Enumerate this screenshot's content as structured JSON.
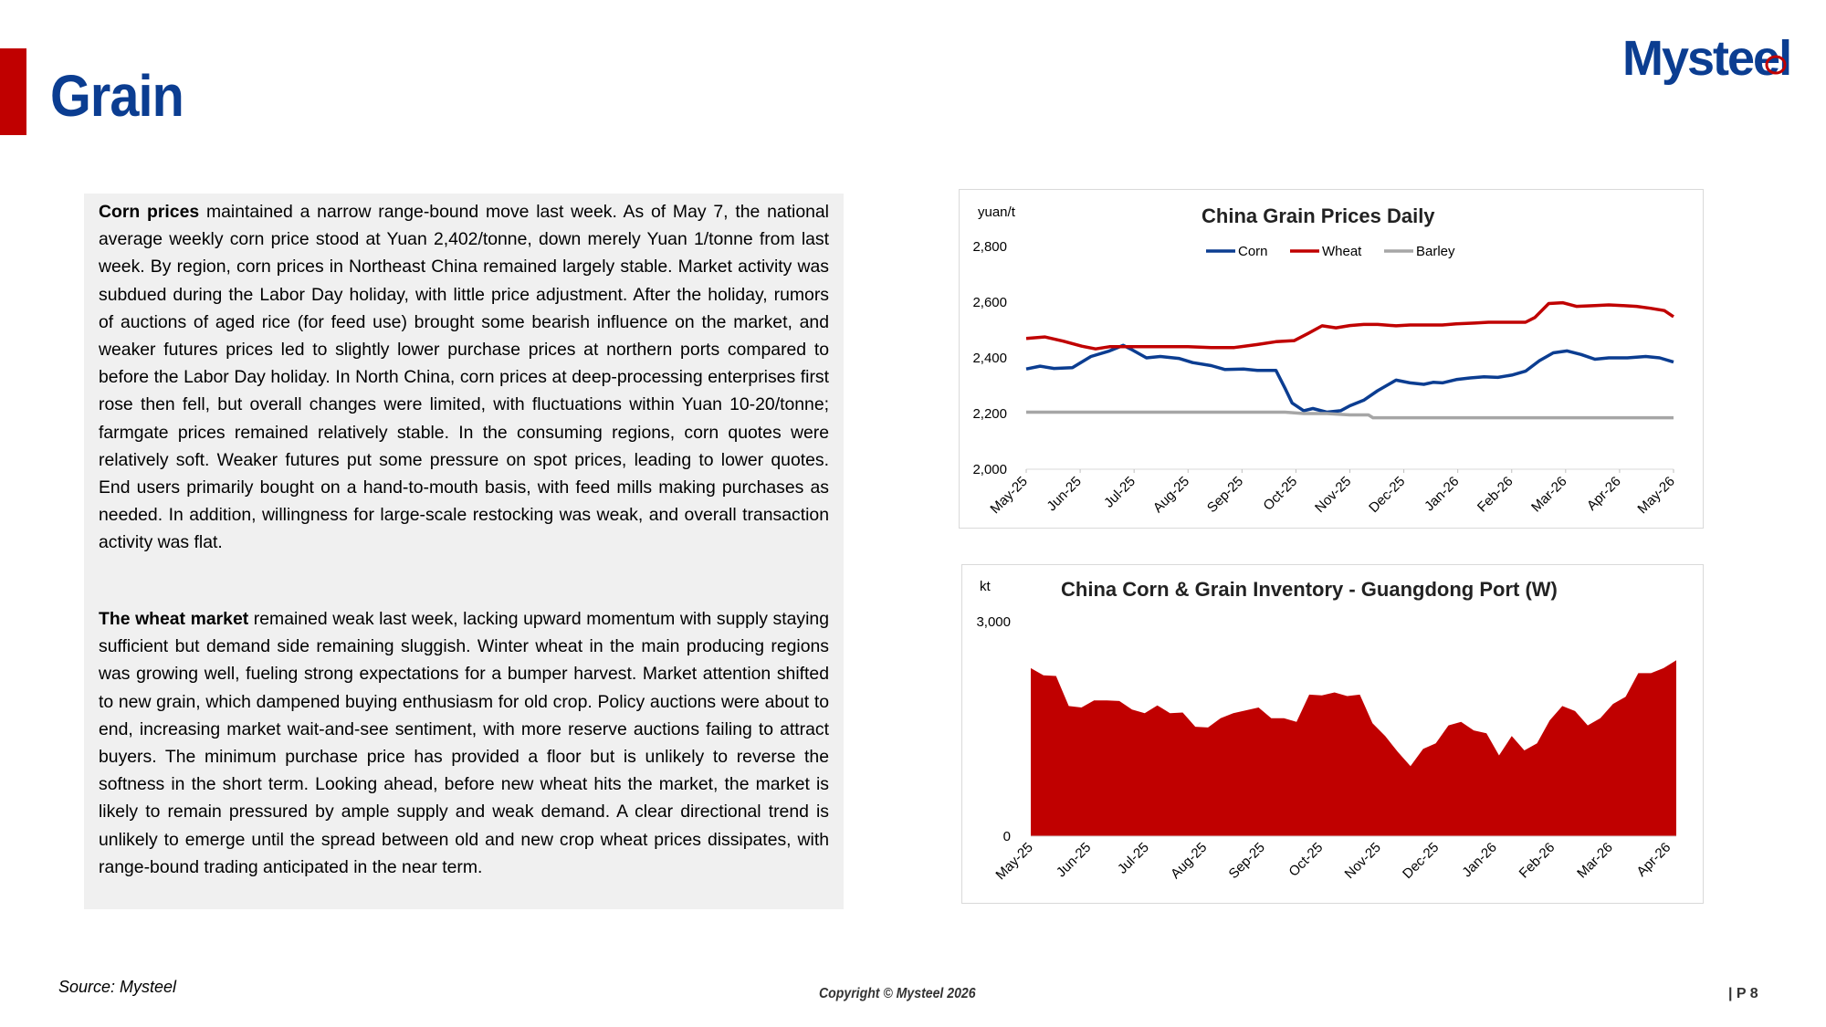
{
  "header": {
    "title": "Grain",
    "logo_text": "Mysteel"
  },
  "commentary": {
    "corn_lead": "Corn prices",
    "corn_body": " maintained a narrow range-bound move last week. As of May 7, the national average weekly corn price stood at Yuan 2,402/tonne, down merely Yuan 1/tonne from last week. By region, corn prices in Northeast China remained largely stable. Market activity was subdued during the Labor Day holiday, with little price adjustment. After the holiday, rumors of auctions of aged rice (for feed use) brought some bearish influence on the market, and weaker futures prices led to slightly lower purchase prices at northern ports compared to before the Labor Day holiday. In North China, corn prices at deep-processing enterprises first rose then fell, but overall changes were limited, with fluctuations within Yuan 10-20/tonne; farmgate prices remained relatively stable. In the consuming regions, corn quotes were relatively soft. Weaker futures put some pressure on spot prices, leading to lower quotes. End users primarily bought on a hand-to-mouth basis, with feed mills making purchases as needed. In addition, willingness for large-scale restocking was weak, and overall transaction activity was flat.",
    "wheat_lead": "The wheat market",
    "wheat_body": " remained weak last week, lacking upward momentum with supply staying sufficient but demand side remaining sluggish. Winter wheat in the main producing regions was growing well, fueling strong expectations for a bumper harvest. Market attention shifted to new grain, which dampened buying enthusiasm for old crop. Policy auctions were about to end, increasing market wait-and-see sentiment, with more reserve auctions failing to attract buyers. The minimum purchase price has provided a floor but is unlikely to reverse the softness in the short term. Looking ahead, before new wheat hits the market, the market is likely to remain pressured by ample supply and weak demand. A clear directional trend is unlikely to emerge until the spread between old and new crop wheat prices dissipates, with range-bound trading anticipated in the near term."
  },
  "chart_data": [
    {
      "type": "line",
      "title": "China Grain Prices Daily",
      "ylabel": "yuan/t",
      "ylim": [
        2000,
        2800
      ],
      "yticks": [
        2000,
        2200,
        2400,
        2600,
        2800
      ],
      "ytick_labels": [
        "2,000",
        "2,200",
        "2,400",
        "2,600",
        "2,800"
      ],
      "xticks": [
        "May-25",
        "Jun-25",
        "Jul-25",
        "Aug-25",
        "Sep-25",
        "Oct-25",
        "Nov-25",
        "Dec-25",
        "Jan-26",
        "Feb-26",
        "Mar-26",
        "Apr-26",
        "May-26"
      ],
      "legend": "top-center",
      "grid": false,
      "x_unit": "months since May-25",
      "series": [
        {
          "name": "Corn",
          "color": "#0b3d91",
          "points": [
            [
              0,
              2360
            ],
            [
              0.3,
              2370
            ],
            [
              0.6,
              2362
            ],
            [
              1.0,
              2365
            ],
            [
              1.4,
              2405
            ],
            [
              1.8,
              2425
            ],
            [
              2.1,
              2445
            ],
            [
              2.3,
              2428
            ],
            [
              2.6,
              2400
            ],
            [
              2.9,
              2405
            ],
            [
              3.3,
              2398
            ],
            [
              3.6,
              2383
            ],
            [
              4.0,
              2372
            ],
            [
              4.3,
              2358
            ],
            [
              4.7,
              2360
            ],
            [
              5.0,
              2355
            ],
            [
              5.4,
              2355
            ],
            [
              5.6,
              2290
            ],
            [
              5.75,
              2238
            ],
            [
              6.0,
              2210
            ],
            [
              6.2,
              2218
            ],
            [
              6.5,
              2205
            ],
            [
              6.8,
              2210
            ],
            [
              7.0,
              2228
            ],
            [
              7.3,
              2248
            ],
            [
              7.6,
              2282
            ],
            [
              8.0,
              2320
            ],
            [
              8.3,
              2310
            ],
            [
              8.6,
              2305
            ],
            [
              8.8,
              2312
            ],
            [
              9.0,
              2310
            ],
            [
              9.3,
              2322
            ],
            [
              9.6,
              2328
            ],
            [
              9.9,
              2332
            ],
            [
              10.2,
              2330
            ],
            [
              10.5,
              2338
            ],
            [
              10.8,
              2352
            ],
            [
              11.1,
              2390
            ],
            [
              11.4,
              2418
            ],
            [
              11.7,
              2425
            ],
            [
              12.0,
              2412
            ],
            [
              12.3,
              2395
            ],
            [
              12.6,
              2400
            ],
            [
              13.0,
              2400
            ],
            [
              13.4,
              2405
            ],
            [
              13.7,
              2400
            ],
            [
              14.0,
              2385
            ]
          ]
        },
        {
          "name": "Wheat",
          "color": "#c00000",
          "points": [
            [
              0,
              2470
            ],
            [
              0.4,
              2475
            ],
            [
              0.8,
              2460
            ],
            [
              1.2,
              2442
            ],
            [
              1.5,
              2432
            ],
            [
              1.8,
              2440
            ],
            [
              2.1,
              2440
            ],
            [
              2.4,
              2440
            ],
            [
              2.7,
              2440
            ],
            [
              3.0,
              2440
            ],
            [
              3.5,
              2440
            ],
            [
              4.0,
              2437
            ],
            [
              4.5,
              2437
            ],
            [
              5.0,
              2448
            ],
            [
              5.4,
              2458
            ],
            [
              5.8,
              2462
            ],
            [
              6.1,
              2488
            ],
            [
              6.4,
              2515
            ],
            [
              6.7,
              2508
            ],
            [
              7.0,
              2516
            ],
            [
              7.3,
              2520
            ],
            [
              7.6,
              2520
            ],
            [
              8.0,
              2515
            ],
            [
              8.3,
              2518
            ],
            [
              8.7,
              2518
            ],
            [
              9.0,
              2518
            ],
            [
              9.3,
              2522
            ],
            [
              9.7,
              2525
            ],
            [
              10.0,
              2528
            ],
            [
              10.5,
              2528
            ],
            [
              10.8,
              2528
            ],
            [
              11.0,
              2545
            ],
            [
              11.3,
              2595
            ],
            [
              11.6,
              2598
            ],
            [
              11.9,
              2585
            ],
            [
              12.3,
              2588
            ],
            [
              12.6,
              2590
            ],
            [
              12.9,
              2588
            ],
            [
              13.2,
              2585
            ],
            [
              13.5,
              2578
            ],
            [
              13.8,
              2570
            ],
            [
              14.0,
              2548
            ]
          ]
        },
        {
          "name": "Barley",
          "color": "#a6a6a6",
          "points": [
            [
              0,
              2205
            ],
            [
              5.6,
              2205
            ],
            [
              6.0,
              2200
            ],
            [
              6.5,
              2200
            ],
            [
              7.0,
              2195
            ],
            [
              7.4,
              2195
            ],
            [
              7.5,
              2185
            ],
            [
              10.0,
              2185
            ],
            [
              14.0,
              2185
            ]
          ]
        }
      ]
    },
    {
      "type": "area",
      "title": "China Corn & Grain Inventory - Guangdong Port (W)",
      "ylabel": "kt",
      "ylim": [
        0,
        3000
      ],
      "yticks": [
        0,
        3000
      ],
      "ytick_labels": [
        "0",
        "3,000"
      ],
      "xticks": [
        "May-25",
        "Jun-25",
        "Jul-25",
        "Aug-25",
        "Sep-25",
        "Oct-25",
        "Nov-25",
        "Dec-25",
        "Jan-26",
        "Feb-26",
        "Mar-26",
        "Apr-26"
      ],
      "grid": false,
      "x_unit": "weeks since May-25",
      "series": [
        {
          "name": "Inventory",
          "color": "#c00000",
          "points": [
            [
              0,
              2350
            ],
            [
              1,
              2250
            ],
            [
              2,
              2240
            ],
            [
              3,
              1820
            ],
            [
              4,
              1800
            ],
            [
              5,
              1900
            ],
            [
              6,
              1900
            ],
            [
              7,
              1890
            ],
            [
              8,
              1770
            ],
            [
              9,
              1720
            ],
            [
              10,
              1830
            ],
            [
              11,
              1720
            ],
            [
              12,
              1730
            ],
            [
              13,
              1530
            ],
            [
              14,
              1520
            ],
            [
              15,
              1650
            ],
            [
              16,
              1720
            ],
            [
              17,
              1760
            ],
            [
              18,
              1800
            ],
            [
              19,
              1650
            ],
            [
              20,
              1650
            ],
            [
              21,
              1600
            ],
            [
              22,
              1980
            ],
            [
              23,
              1970
            ],
            [
              24,
              2010
            ],
            [
              25,
              1960
            ],
            [
              26,
              1980
            ],
            [
              27,
              1580
            ],
            [
              28,
              1400
            ],
            [
              29,
              1180
            ],
            [
              30,
              980
            ],
            [
              31,
              1220
            ],
            [
              32,
              1300
            ],
            [
              33,
              1550
            ],
            [
              34,
              1600
            ],
            [
              35,
              1480
            ],
            [
              36,
              1440
            ],
            [
              37,
              1130
            ],
            [
              38,
              1400
            ],
            [
              39,
              1200
            ],
            [
              40,
              1300
            ],
            [
              41,
              1620
            ],
            [
              42,
              1820
            ],
            [
              43,
              1750
            ],
            [
              44,
              1550
            ],
            [
              45,
              1650
            ],
            [
              46,
              1850
            ],
            [
              47,
              1950
            ],
            [
              48,
              2280
            ],
            [
              49,
              2280
            ],
            [
              50,
              2350
            ],
            [
              51,
              2460
            ]
          ]
        }
      ]
    }
  ],
  "footer": {
    "source": "Source: Mysteel",
    "copyright": "Copyright © Mysteel 2026",
    "page": "| P 8"
  }
}
